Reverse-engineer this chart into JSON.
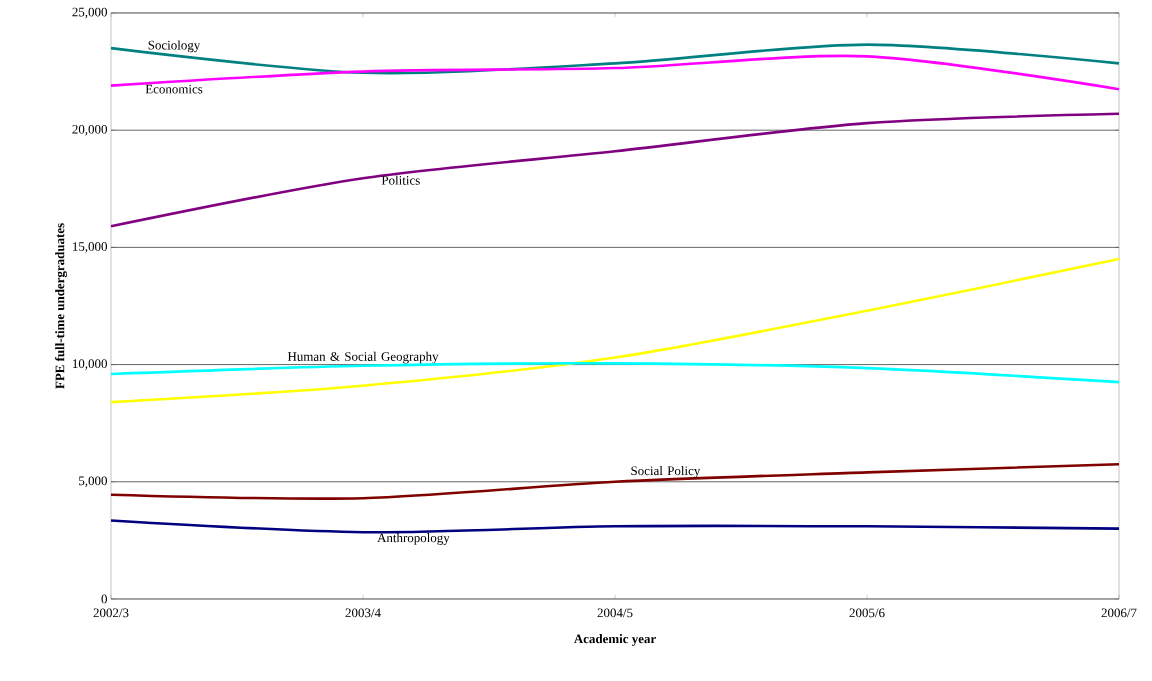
{
  "chart_data": {
    "type": "line",
    "xlabel": "Academic year",
    "ylabel": "FPE full-time undergraduates",
    "categories": [
      "2002/3",
      "2003/4",
      "2004/5",
      "2005/6",
      "2006/7"
    ],
    "ylim": [
      0,
      25000
    ],
    "yticks": [
      {
        "value": 0,
        "label": "0"
      },
      {
        "value": 5000,
        "label": "5,000"
      },
      {
        "value": 10000,
        "label": "10,000"
      },
      {
        "value": 15000,
        "label": "15,000"
      },
      {
        "value": 20000,
        "label": "20,000"
      },
      {
        "value": 25000,
        "label": "25,000"
      }
    ],
    "grid": "y",
    "legend": false,
    "marker": "none",
    "line_style": "solid",
    "series": [
      {
        "name": "Sociology",
        "color": "#008080",
        "values": [
          23500,
          22450,
          22850,
          23650,
          22850
        ]
      },
      {
        "name": "Economics",
        "color": "#ff00ff",
        "values": [
          21900,
          22500,
          22650,
          23150,
          21750
        ]
      },
      {
        "name": "Politics",
        "color": "#800080",
        "values": [
          15900,
          17950,
          19100,
          20300,
          20700
        ]
      },
      {
        "name": "Human & Social Geography",
        "color": "#ffff00",
        "values": [
          8400,
          9100,
          10300,
          12300,
          14500
        ]
      },
      {
        "color": "#00ffff",
        "values": [
          9600,
          9950,
          10050,
          9850,
          9250
        ]
      },
      {
        "name": "Social Policy",
        "color": "#800000",
        "values": [
          4450,
          4300,
          5000,
          5400,
          5750
        ]
      },
      {
        "name": "Anthropology",
        "color": "#000080",
        "values": [
          3350,
          2850,
          3100,
          3100,
          3000
        ]
      }
    ]
  }
}
